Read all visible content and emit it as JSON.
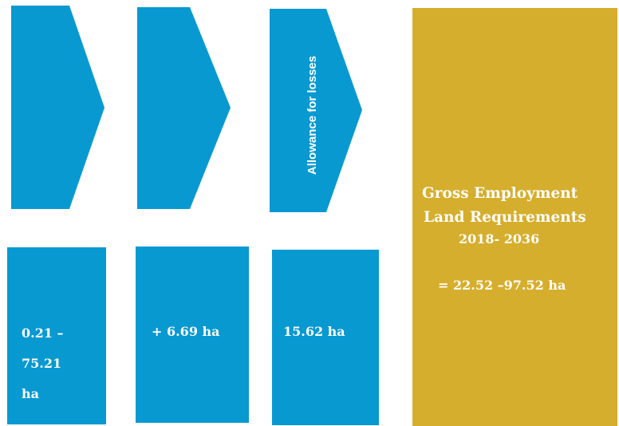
{
  "arrow1": {
    "label": ""
  },
  "arrow2": {
    "label": ""
  },
  "arrow3": {
    "label": "Allowance for losses"
  },
  "box1": {
    "lines": [
      "0.21 –",
      "75.21",
      "ha"
    ]
  },
  "box2": {
    "text": "+ 6.69 ha"
  },
  "box3": {
    "text": "15.62 ha"
  },
  "result": {
    "line1": "Gross Employment",
    "line2": "Land Requirements",
    "line3": "2018-  2036",
    "value": "= 22.52 –97.52 ha"
  },
  "colors": {
    "blue": "#0899d1",
    "gold": "#d5ae2d",
    "text": "#ffffff"
  }
}
